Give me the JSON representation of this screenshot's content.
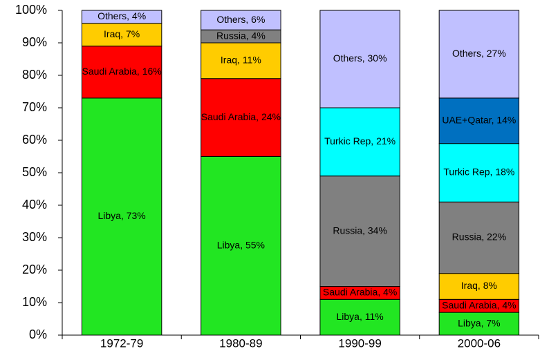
{
  "chart_data": {
    "type": "stacked_bar",
    "categories": [
      "1972-79",
      "1980-89",
      "1990-99",
      "2000-06"
    ],
    "series": [
      {
        "name": "Libya",
        "color": "#22e622",
        "values": [
          73,
          55,
          11,
          7
        ],
        "value_labels": [
          "Libya, 73%",
          "Libya, 55%",
          "Libya, 11%",
          "Libya, 7%"
        ]
      },
      {
        "name": "Saudi Arabia",
        "color": "#ff0000",
        "values": [
          16,
          24,
          4,
          4
        ],
        "value_labels": [
          "Saudi Arabia, 16%",
          "Saudi Arabia, 24%",
          "Saudi Arabia, 4%",
          "Saudi Arabia, 4%"
        ]
      },
      {
        "name": "Iraq",
        "color": "#ffcc00",
        "values": [
          7,
          11,
          null,
          8
        ],
        "value_labels": [
          "Iraq, 7%",
          "Iraq, 11%",
          null,
          "Iraq, 8%"
        ]
      },
      {
        "name": "Russia",
        "color": "#808080",
        "values": [
          null,
          4,
          34,
          22
        ],
        "value_labels": [
          null,
          "Russia, 4%",
          "Russia, 34%",
          "Russia, 22%"
        ]
      },
      {
        "name": "Turkic Rep",
        "color": "#00ffff",
        "values": [
          null,
          null,
          21,
          18
        ],
        "value_labels": [
          null,
          null,
          "Turkic Rep, 21%",
          "Turkic Rep, 18%"
        ]
      },
      {
        "name": "UAE+Qatar",
        "color": "#0070c0",
        "values": [
          null,
          null,
          null,
          14
        ],
        "value_labels": [
          null,
          null,
          null,
          "UAE+Qatar, 14%"
        ]
      },
      {
        "name": "Others",
        "color": "#c0c0ff",
        "values": [
          4,
          6,
          30,
          27
        ],
        "value_labels": [
          "Others, 4%",
          "Others, 6%",
          "Others, 30%",
          "Others, 27%"
        ]
      }
    ],
    "ylim": [
      0,
      100
    ],
    "yticks": [
      {
        "value": 0,
        "label": "0%"
      },
      {
        "value": 10,
        "label": "10%"
      },
      {
        "value": 20,
        "label": "20%"
      },
      {
        "value": 30,
        "label": "30%"
      },
      {
        "value": 40,
        "label": "40%"
      },
      {
        "value": 50,
        "label": "50%"
      },
      {
        "value": 60,
        "label": "60%"
      },
      {
        "value": 70,
        "label": "70%"
      },
      {
        "value": 80,
        "label": "80%"
      },
      {
        "value": 90,
        "label": "90%"
      },
      {
        "value": 100,
        "label": "100%"
      }
    ],
    "grid": false
  }
}
